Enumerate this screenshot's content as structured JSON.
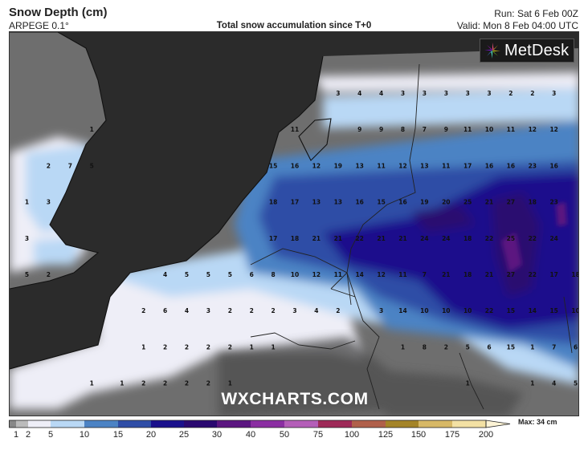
{
  "header": {
    "title": "Snow Depth (cm)",
    "model": "ARPEGE 0.1°",
    "subtitle": "Total snow accumulation since T+0",
    "run": "Run: Sat 6 Feb 00Z",
    "valid": "Valid: Mon 8 Feb 04:00 UTC"
  },
  "logo": {
    "text": "MetDesk",
    "icon": "starburst-logo-icon"
  },
  "watermark": "WXCHARTS.COM",
  "legend": {
    "ticks": [
      "1",
      "2",
      "5",
      "10",
      "15",
      "20",
      "25",
      "30",
      "40",
      "50",
      "75",
      "100",
      "125",
      "150",
      "175",
      "200"
    ],
    "colors": [
      "#888888",
      "#bbbbbb",
      "#eeeef7",
      "#b9d8f5",
      "#4c83c4",
      "#2f4da6",
      "#1a108c",
      "#2a0870",
      "#5b1580",
      "#8b2ea2",
      "#b45eb8",
      "#9e2a58",
      "#b0604a",
      "#a48428",
      "#d7b866",
      "#f3e1a4"
    ],
    "max_label": "Max: 34 cm"
  },
  "map_values": [
    {
      "v": "3",
      "lon": 4.4,
      "lat": 53.55
    },
    {
      "v": "4",
      "lon": 4.9,
      "lat": 53.55
    },
    {
      "v": "4",
      "lon": 5.4,
      "lat": 53.55
    },
    {
      "v": "3",
      "lon": 5.9,
      "lat": 53.55
    },
    {
      "v": "3",
      "lon": 6.4,
      "lat": 53.55
    },
    {
      "v": "3",
      "lon": 6.9,
      "lat": 53.55
    },
    {
      "v": "3",
      "lon": 7.4,
      "lat": 53.55
    },
    {
      "v": "3",
      "lon": 7.9,
      "lat": 53.55
    },
    {
      "v": "2",
      "lon": 8.4,
      "lat": 53.55
    },
    {
      "v": "2",
      "lon": 8.9,
      "lat": 53.55
    },
    {
      "v": "3",
      "lon": 9.4,
      "lat": 53.55
    },
    {
      "v": "1",
      "lon": -1.3,
      "lat": 53.15
    },
    {
      "v": "11",
      "lon": 3.4,
      "lat": 53.15
    },
    {
      "v": "9",
      "lon": 4.9,
      "lat": 53.15
    },
    {
      "v": "9",
      "lon": 5.4,
      "lat": 53.15
    },
    {
      "v": "8",
      "lon": 5.9,
      "lat": 53.15
    },
    {
      "v": "7",
      "lon": 6.4,
      "lat": 53.15
    },
    {
      "v": "9",
      "lon": 6.9,
      "lat": 53.15
    },
    {
      "v": "11",
      "lon": 7.4,
      "lat": 53.15
    },
    {
      "v": "10",
      "lon": 7.9,
      "lat": 53.15
    },
    {
      "v": "11",
      "lon": 8.4,
      "lat": 53.15
    },
    {
      "v": "12",
      "lon": 8.9,
      "lat": 53.15
    },
    {
      "v": "12",
      "lon": 9.4,
      "lat": 53.15
    },
    {
      "v": "2",
      "lon": -2.3,
      "lat": 52.75
    },
    {
      "v": "7",
      "lon": -1.8,
      "lat": 52.75
    },
    {
      "v": "5",
      "lon": -1.3,
      "lat": 52.75
    },
    {
      "v": "15",
      "lon": 2.9,
      "lat": 52.75
    },
    {
      "v": "16",
      "lon": 3.4,
      "lat": 52.75
    },
    {
      "v": "12",
      "lon": 3.9,
      "lat": 52.75
    },
    {
      "v": "19",
      "lon": 4.4,
      "lat": 52.75
    },
    {
      "v": "13",
      "lon": 4.9,
      "lat": 52.75
    },
    {
      "v": "11",
      "lon": 5.4,
      "lat": 52.75
    },
    {
      "v": "12",
      "lon": 5.9,
      "lat": 52.75
    },
    {
      "v": "13",
      "lon": 6.4,
      "lat": 52.75
    },
    {
      "v": "11",
      "lon": 6.9,
      "lat": 52.75
    },
    {
      "v": "17",
      "lon": 7.4,
      "lat": 52.75
    },
    {
      "v": "16",
      "lon": 7.9,
      "lat": 52.75
    },
    {
      "v": "16",
      "lon": 8.4,
      "lat": 52.75
    },
    {
      "v": "23",
      "lon": 8.9,
      "lat": 52.75
    },
    {
      "v": "16",
      "lon": 9.4,
      "lat": 52.75
    },
    {
      "v": "1",
      "lon": -2.8,
      "lat": 52.35
    },
    {
      "v": "3",
      "lon": -2.3,
      "lat": 52.35
    },
    {
      "v": "18",
      "lon": 2.9,
      "lat": 52.35
    },
    {
      "v": "17",
      "lon": 3.4,
      "lat": 52.35
    },
    {
      "v": "13",
      "lon": 3.9,
      "lat": 52.35
    },
    {
      "v": "13",
      "lon": 4.4,
      "lat": 52.35
    },
    {
      "v": "16",
      "lon": 4.9,
      "lat": 52.35
    },
    {
      "v": "15",
      "lon": 5.4,
      "lat": 52.35
    },
    {
      "v": "16",
      "lon": 5.9,
      "lat": 52.35
    },
    {
      "v": "19",
      "lon": 6.4,
      "lat": 52.35
    },
    {
      "v": "20",
      "lon": 6.9,
      "lat": 52.35
    },
    {
      "v": "25",
      "lon": 7.4,
      "lat": 52.35
    },
    {
      "v": "21",
      "lon": 7.9,
      "lat": 52.35
    },
    {
      "v": "27",
      "lon": 8.4,
      "lat": 52.35
    },
    {
      "v": "18",
      "lon": 8.9,
      "lat": 52.35
    },
    {
      "v": "23",
      "lon": 9.4,
      "lat": 52.35
    },
    {
      "v": "3",
      "lon": -2.8,
      "lat": 51.95
    },
    {
      "v": "17",
      "lon": 2.9,
      "lat": 51.95
    },
    {
      "v": "18",
      "lon": 3.4,
      "lat": 51.95
    },
    {
      "v": "21",
      "lon": 3.9,
      "lat": 51.95
    },
    {
      "v": "21",
      "lon": 4.4,
      "lat": 51.95
    },
    {
      "v": "22",
      "lon": 4.9,
      "lat": 51.95
    },
    {
      "v": "21",
      "lon": 5.4,
      "lat": 51.95
    },
    {
      "v": "21",
      "lon": 5.9,
      "lat": 51.95
    },
    {
      "v": "24",
      "lon": 6.4,
      "lat": 51.95
    },
    {
      "v": "24",
      "lon": 6.9,
      "lat": 51.95
    },
    {
      "v": "18",
      "lon": 7.4,
      "lat": 51.95
    },
    {
      "v": "22",
      "lon": 7.9,
      "lat": 51.95
    },
    {
      "v": "25",
      "lon": 8.4,
      "lat": 51.95
    },
    {
      "v": "22",
      "lon": 8.9,
      "lat": 51.95
    },
    {
      "v": "24",
      "lon": 9.4,
      "lat": 51.95
    },
    {
      "v": "5",
      "lon": -2.8,
      "lat": 51.55
    },
    {
      "v": "2",
      "lon": -2.3,
      "lat": 51.55
    },
    {
      "v": "4",
      "lon": 0.4,
      "lat": 51.55
    },
    {
      "v": "5",
      "lon": 0.9,
      "lat": 51.55
    },
    {
      "v": "5",
      "lon": 1.4,
      "lat": 51.55
    },
    {
      "v": "5",
      "lon": 1.9,
      "lat": 51.55
    },
    {
      "v": "6",
      "lon": 2.4,
      "lat": 51.55
    },
    {
      "v": "8",
      "lon": 2.9,
      "lat": 51.55
    },
    {
      "v": "10",
      "lon": 3.4,
      "lat": 51.55
    },
    {
      "v": "12",
      "lon": 3.9,
      "lat": 51.55
    },
    {
      "v": "11",
      "lon": 4.4,
      "lat": 51.55
    },
    {
      "v": "14",
      "lon": 4.9,
      "lat": 51.55
    },
    {
      "v": "12",
      "lon": 5.4,
      "lat": 51.55
    },
    {
      "v": "11",
      "lon": 5.9,
      "lat": 51.55
    },
    {
      "v": "7",
      "lon": 6.4,
      "lat": 51.55
    },
    {
      "v": "21",
      "lon": 6.9,
      "lat": 51.55
    },
    {
      "v": "18",
      "lon": 7.4,
      "lat": 51.55
    },
    {
      "v": "21",
      "lon": 7.9,
      "lat": 51.55
    },
    {
      "v": "27",
      "lon": 8.4,
      "lat": 51.55
    },
    {
      "v": "22",
      "lon": 8.9,
      "lat": 51.55
    },
    {
      "v": "17",
      "lon": 9.4,
      "lat": 51.55
    },
    {
      "v": "18",
      "lon": 9.9,
      "lat": 51.55
    },
    {
      "v": "2",
      "lon": -0.1,
      "lat": 51.15
    },
    {
      "v": "6",
      "lon": 0.4,
      "lat": 51.15
    },
    {
      "v": "4",
      "lon": 0.9,
      "lat": 51.15
    },
    {
      "v": "3",
      "lon": 1.4,
      "lat": 51.15
    },
    {
      "v": "2",
      "lon": 1.9,
      "lat": 51.15
    },
    {
      "v": "2",
      "lon": 2.4,
      "lat": 51.15
    },
    {
      "v": "2",
      "lon": 2.9,
      "lat": 51.15
    },
    {
      "v": "3",
      "lon": 3.4,
      "lat": 51.15
    },
    {
      "v": "4",
      "lon": 3.9,
      "lat": 51.15
    },
    {
      "v": "2",
      "lon": 4.4,
      "lat": 51.15
    },
    {
      "v": "3",
      "lon": 5.4,
      "lat": 51.15
    },
    {
      "v": "14",
      "lon": 5.9,
      "lat": 51.15
    },
    {
      "v": "10",
      "lon": 6.4,
      "lat": 51.15
    },
    {
      "v": "10",
      "lon": 6.9,
      "lat": 51.15
    },
    {
      "v": "10",
      "lon": 7.4,
      "lat": 51.15
    },
    {
      "v": "22",
      "lon": 7.9,
      "lat": 51.15
    },
    {
      "v": "15",
      "lon": 8.4,
      "lat": 51.15
    },
    {
      "v": "14",
      "lon": 8.9,
      "lat": 51.15
    },
    {
      "v": "15",
      "lon": 9.4,
      "lat": 51.15
    },
    {
      "v": "10",
      "lon": 9.9,
      "lat": 51.15
    },
    {
      "v": "1",
      "lon": -0.1,
      "lat": 50.75
    },
    {
      "v": "2",
      "lon": 0.4,
      "lat": 50.75
    },
    {
      "v": "2",
      "lon": 0.9,
      "lat": 50.75
    },
    {
      "v": "2",
      "lon": 1.4,
      "lat": 50.75
    },
    {
      "v": "2",
      "lon": 1.9,
      "lat": 50.75
    },
    {
      "v": "1",
      "lon": 2.4,
      "lat": 50.75
    },
    {
      "v": "1",
      "lon": 2.9,
      "lat": 50.75
    },
    {
      "v": "1",
      "lon": 5.9,
      "lat": 50.75
    },
    {
      "v": "8",
      "lon": 6.4,
      "lat": 50.75
    },
    {
      "v": "2",
      "lon": 6.9,
      "lat": 50.75
    },
    {
      "v": "5",
      "lon": 7.4,
      "lat": 50.75
    },
    {
      "v": "6",
      "lon": 7.9,
      "lat": 50.75
    },
    {
      "v": "15",
      "lon": 8.4,
      "lat": 50.75
    },
    {
      "v": "1",
      "lon": 8.9,
      "lat": 50.75
    },
    {
      "v": "7",
      "lon": 9.4,
      "lat": 50.75
    },
    {
      "v": "6",
      "lon": 9.9,
      "lat": 50.75
    },
    {
      "v": "1",
      "lon": -1.3,
      "lat": 50.35
    },
    {
      "v": "1",
      "lon": -0.6,
      "lat": 50.35
    },
    {
      "v": "2",
      "lon": -0.1,
      "lat": 50.35
    },
    {
      "v": "2",
      "lon": 0.4,
      "lat": 50.35
    },
    {
      "v": "2",
      "lon": 0.9,
      "lat": 50.35
    },
    {
      "v": "2",
      "lon": 1.4,
      "lat": 50.35
    },
    {
      "v": "1",
      "lon": 1.9,
      "lat": 50.35
    },
    {
      "v": "1",
      "lon": 7.4,
      "lat": 50.35
    },
    {
      "v": "1",
      "lon": 8.9,
      "lat": 50.35
    },
    {
      "v": "4",
      "lon": 9.4,
      "lat": 50.35
    },
    {
      "v": "5",
      "lon": 9.9,
      "lat": 50.35
    }
  ]
}
